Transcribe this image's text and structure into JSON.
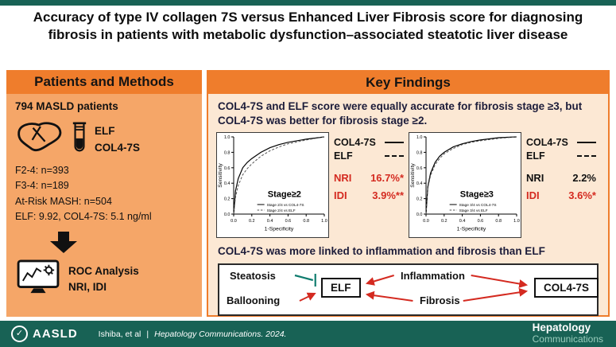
{
  "title": "Accuracy of type IV collagen 7S versus Enhanced Liver Fibrosis score for diagnosing fibrosis in patients with metabolic dysfunction–associated steatotic liver disease",
  "left_panel": {
    "header": "Patients and Methods",
    "patients_line": "794 MASLD patients",
    "test_labels": {
      "elf": "ELF",
      "col": "COL4-7S"
    },
    "stats": [
      "F2-4: n=393",
      "F3-4: n=189",
      "At-Risk MASH: n=504",
      "ELF: 9.92, COL4-7S: 5.1 ng/ml"
    ],
    "analysis_line1": "ROC Analysis",
    "analysis_line2": "NRI, IDI"
  },
  "right_panel": {
    "header": "Key Findings",
    "finding1": "COL4-7S and ELF score were equally accurate for fibrosis stage ≥3, but COL4-7S was better for fibrosis stage ≥2.",
    "finding2": "COL4-7S was more linked to inflammation and fibrosis than ELF",
    "stats_blocks": [
      {
        "legend": [
          {
            "label": "COL4-7S",
            "style": "solid"
          },
          {
            "label": "ELF",
            "style": "dashed"
          }
        ],
        "rows": [
          {
            "label": "NRI",
            "value": "16.7%*",
            "color": "red"
          },
          {
            "label": "IDI",
            "value": "3.9%**",
            "color": "red"
          }
        ]
      },
      {
        "legend": [
          {
            "label": "COL4-7S",
            "style": "solid"
          },
          {
            "label": "ELF",
            "style": "dashed"
          }
        ],
        "rows": [
          {
            "label": "NRI",
            "value": "2.2%",
            "color": "black"
          },
          {
            "label": "IDI",
            "value": "3.6%*",
            "color": "red"
          }
        ]
      }
    ],
    "diagram": {
      "left_labels": [
        "Steatosis",
        "Ballooning"
      ],
      "mid_labels": [
        "Inflammation",
        "Fibrosis"
      ],
      "elf_box": "ELF",
      "col_box": "COL4-7S"
    }
  },
  "chart_data": [
    {
      "type": "line",
      "title": "Stage≥2",
      "xlabel": "1-Specificity",
      "ylabel": "Sensitivity",
      "xlim": [
        0,
        1
      ],
      "ylim": [
        0,
        1
      ],
      "xticks": [
        0,
        0.2,
        0.4,
        0.6,
        0.8,
        1
      ],
      "yticks": [
        0,
        0.2,
        0.4,
        0.6,
        0.8,
        1
      ],
      "grid": false,
      "legend_position": "inside-bottom",
      "series": [
        {
          "name": "Stage 2/4 vs COL4-7S",
          "style": "solid",
          "x": [
            0,
            0.02,
            0.05,
            0.1,
            0.15,
            0.2,
            0.3,
            0.4,
            0.5,
            0.6,
            0.8,
            1
          ],
          "y": [
            0,
            0.3,
            0.46,
            0.6,
            0.67,
            0.72,
            0.8,
            0.86,
            0.9,
            0.93,
            0.97,
            1
          ]
        },
        {
          "name": "Stage 2/4 vs ELF",
          "style": "dashed",
          "x": [
            0,
            0.02,
            0.05,
            0.1,
            0.15,
            0.2,
            0.3,
            0.4,
            0.5,
            0.6,
            0.8,
            1
          ],
          "y": [
            0,
            0.22,
            0.37,
            0.51,
            0.59,
            0.65,
            0.75,
            0.82,
            0.87,
            0.91,
            0.96,
            1
          ]
        }
      ]
    },
    {
      "type": "line",
      "title": "Stage≥3",
      "xlabel": "1-Specificity",
      "ylabel": "Sensitivity",
      "xlim": [
        0,
        1
      ],
      "ylim": [
        0,
        1
      ],
      "xticks": [
        0,
        0.2,
        0.4,
        0.6,
        0.8,
        1
      ],
      "yticks": [
        0,
        0.2,
        0.4,
        0.6,
        0.8,
        1
      ],
      "grid": false,
      "legend_position": "inside-bottom",
      "series": [
        {
          "name": "Stage 3/4 vs COL4-7S",
          "style": "solid",
          "x": [
            0,
            0.02,
            0.05,
            0.1,
            0.15,
            0.2,
            0.3,
            0.4,
            0.5,
            0.6,
            0.8,
            1
          ],
          "y": [
            0,
            0.36,
            0.53,
            0.67,
            0.75,
            0.8,
            0.87,
            0.91,
            0.94,
            0.96,
            0.99,
            1
          ]
        },
        {
          "name": "Stage 3/4 vs ELF",
          "style": "dashed",
          "x": [
            0,
            0.02,
            0.05,
            0.1,
            0.15,
            0.2,
            0.3,
            0.4,
            0.5,
            0.6,
            0.8,
            1
          ],
          "y": [
            0,
            0.34,
            0.5,
            0.64,
            0.72,
            0.78,
            0.85,
            0.9,
            0.93,
            0.95,
            0.98,
            1
          ]
        }
      ]
    }
  ],
  "footer": {
    "logo_text": "AASLD",
    "logo_mark": "✓",
    "citation_authors": "Ishiba, et al",
    "citation_separator": "|",
    "citation_journal": "Hepatology Communications. 2024.",
    "journal_name_line1": "Hepatology",
    "journal_name_line2": "Communications"
  },
  "colors": {
    "teal_bar": "#186255",
    "orange_header": "#EF7D2C",
    "orange_panel": "#F5A668",
    "peach_panel": "#FCE8D4",
    "accent_red": "#D42A20",
    "inhibit_teal": "#0F7C6E"
  }
}
